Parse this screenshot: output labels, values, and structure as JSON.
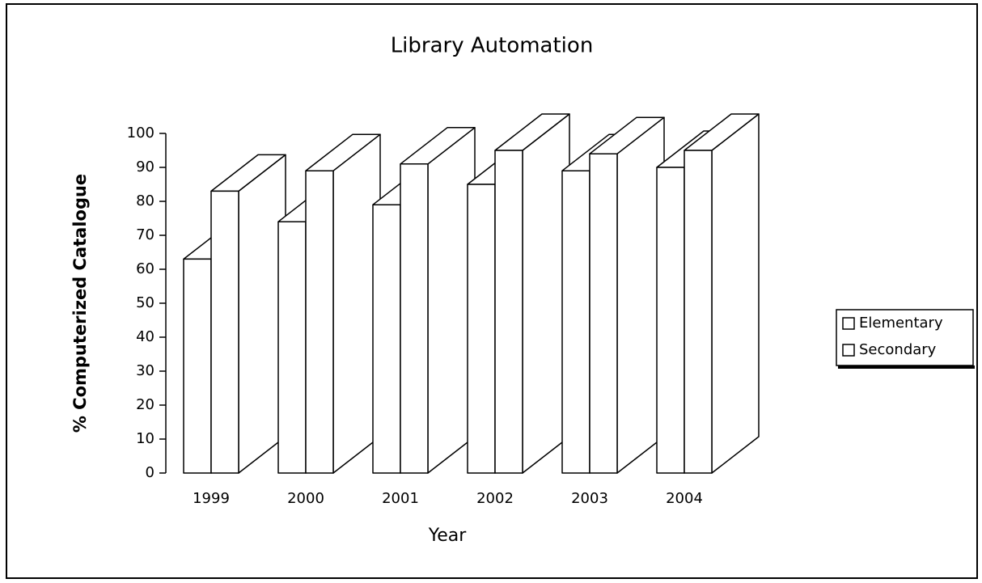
{
  "chart_data": {
    "type": "bar3d",
    "title": "Library Automation",
    "xlabel": "Year",
    "ylabel": "% Computerized Catalogue",
    "categories": [
      "1999",
      "2000",
      "2001",
      "2002",
      "2003",
      "2004"
    ],
    "series": [
      {
        "name": "Elementary",
        "color": "#ffffff",
        "values": [
          63,
          74,
          79,
          85,
          89,
          90
        ]
      },
      {
        "name": "Secondary",
        "color": "#ffffff",
        "values": [
          83,
          89,
          91,
          95,
          94,
          95
        ]
      }
    ],
    "ylim": [
      0,
      100
    ],
    "yticks": [
      0,
      10,
      20,
      30,
      40,
      50,
      60,
      70,
      80,
      90,
      100
    ],
    "legend": "right"
  }
}
